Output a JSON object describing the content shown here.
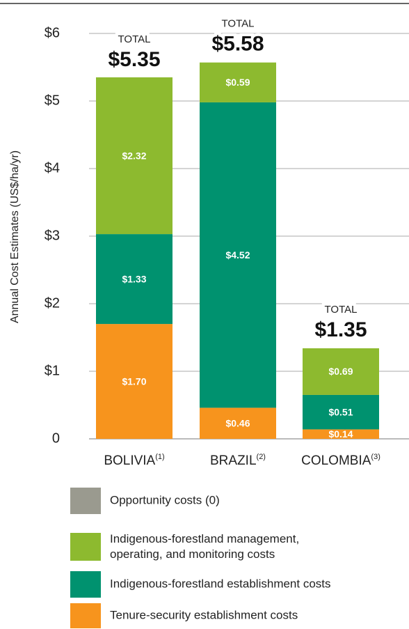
{
  "chart_data": {
    "type": "stacked_bar",
    "ylabel": "Annual Cost Estimates  (US$/ha/yr)",
    "categories": [
      "BOLIVIA",
      "BRAZIL",
      "COLOMBIA"
    ],
    "category_notes": [
      "(1)",
      "(2)",
      "(3)"
    ],
    "ylim": [
      0,
      6
    ],
    "yticks": [
      0,
      {
        "value": 1,
        "label": "$1"
      },
      {
        "value": 2,
        "label": "$2"
      },
      {
        "value": 3,
        "label": "$3"
      },
      {
        "value": 4,
        "label": "$4"
      },
      {
        "value": 5,
        "label": "$5"
      },
      {
        "value": 6,
        "label": "$6"
      }
    ],
    "grid": true,
    "total_caption": "TOTAL",
    "totals": [
      5.35,
      5.58,
      1.35
    ],
    "total_labels": [
      "$5.35",
      "$5.58",
      "$1.35"
    ],
    "series": [
      {
        "name": "Tenure-security establishment costs",
        "color": "#f7941d",
        "values": [
          1.7,
          0.46,
          0.14
        ],
        "value_labels": [
          "$1.70",
          "$0.46",
          "$0.14"
        ]
      },
      {
        "name": "Indigenous-forestland establishment costs",
        "color": "#00926f",
        "values": [
          1.33,
          4.52,
          0.51
        ],
        "value_labels": [
          "$1.33",
          "$4.52",
          "$0.51"
        ]
      },
      {
        "name": "Indigenous-forestland management, operating, and monitoring costs",
        "color": "#8dba2f",
        "values": [
          2.32,
          0.59,
          0.69
        ],
        "value_labels": [
          "$2.32",
          "$0.59",
          "$0.69"
        ]
      },
      {
        "name": "Opportunity costs (0)",
        "color": "#9a9a8f",
        "values": [
          0,
          0,
          0
        ]
      }
    ]
  }
}
